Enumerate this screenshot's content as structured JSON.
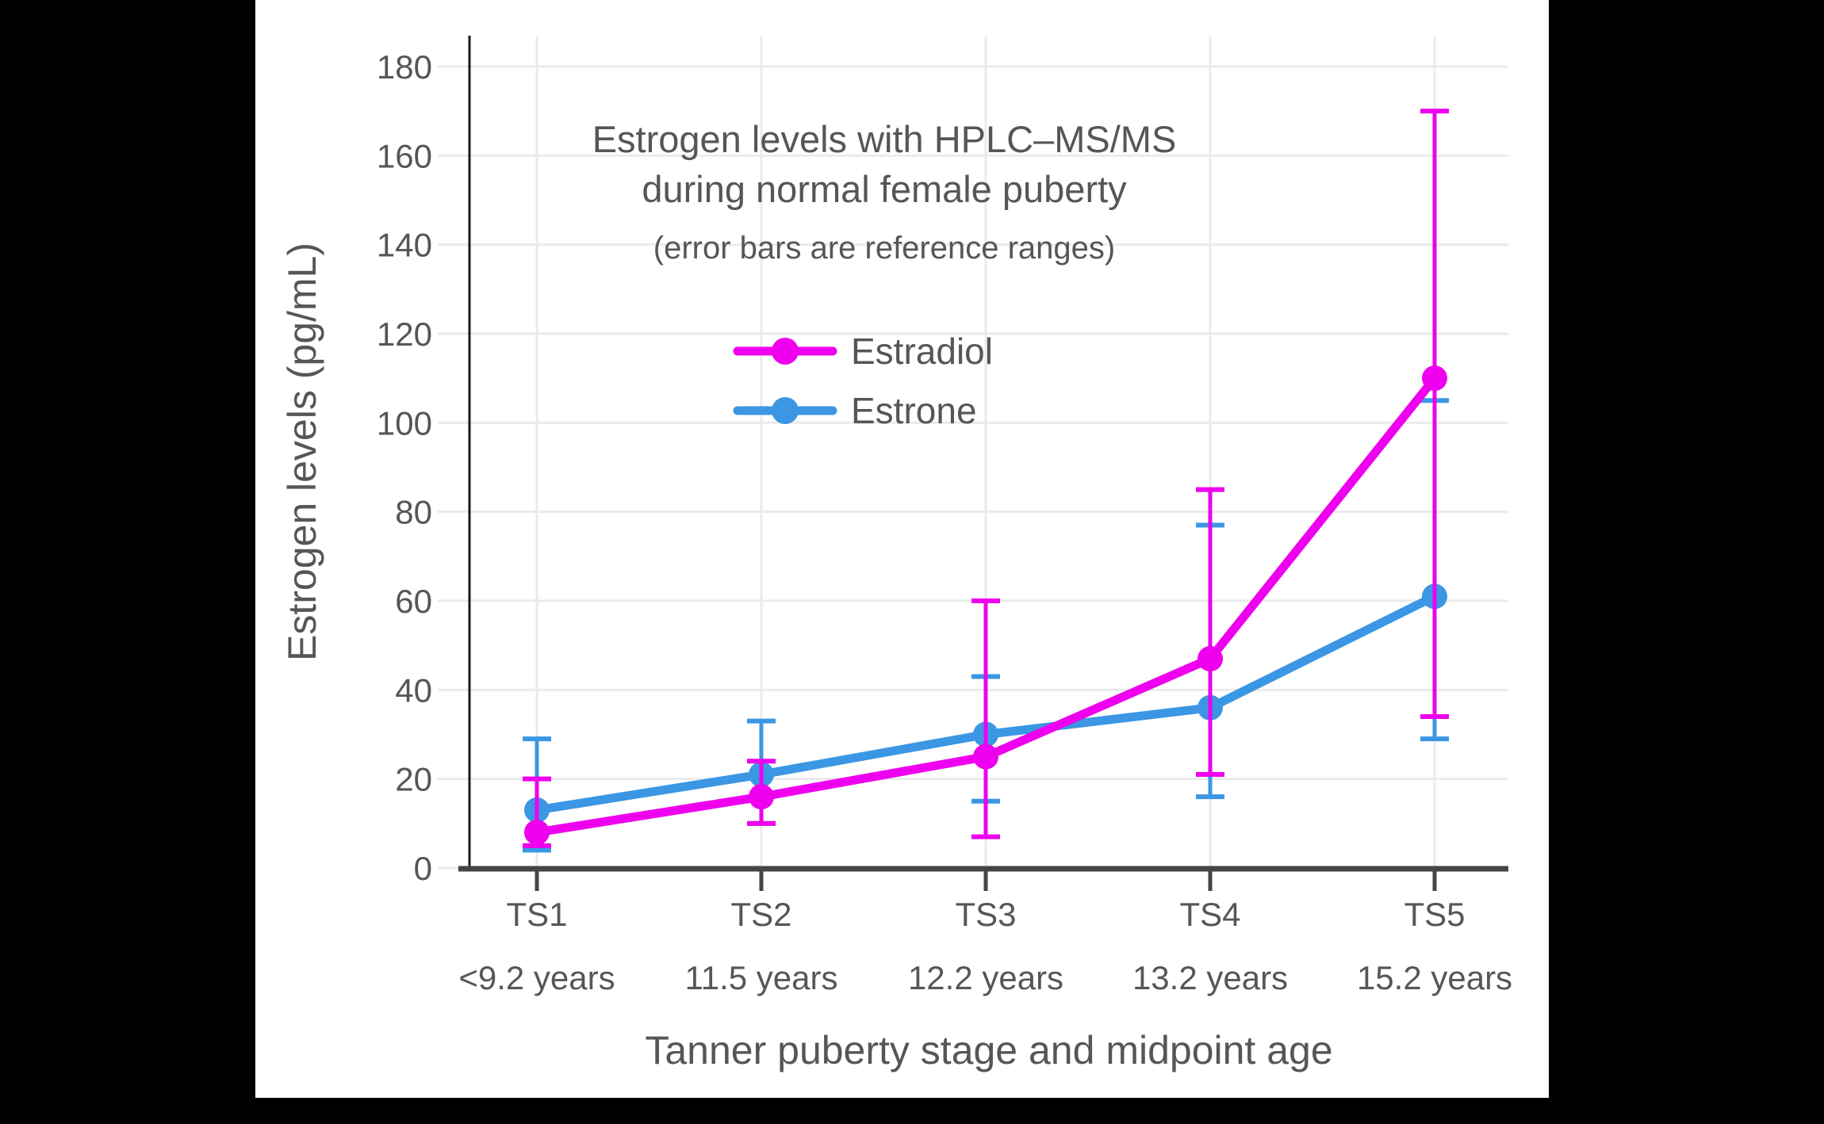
{
  "page": {
    "background_color": "#000000",
    "plot_background_color": "#ffffff"
  },
  "chart_data": {
    "type": "line",
    "title": "Estrogen levels with HPLC–MS/MS during normal female puberty",
    "title_lines": [
      "Estrogen levels with HPLC–MS/MS",
      "during normal female puberty"
    ],
    "subtitle": "(error bars are reference ranges)",
    "xlabel": "Tanner puberty stage and midpoint age",
    "ylabel": "Estrogen levels (pg/mL)",
    "categories": [
      "TS1",
      "TS2",
      "TS3",
      "TS4",
      "TS5"
    ],
    "category_sublabels": [
      "<9.2 years",
      "11.5 years",
      "12.2 years",
      "13.2 years",
      "15.2 years"
    ],
    "y_ticks": [
      0,
      20,
      40,
      60,
      80,
      100,
      120,
      140,
      160,
      180
    ],
    "ylim": [
      0,
      187
    ],
    "grid": true,
    "legend_position": "upper-left-inside",
    "error_bar_meaning": "reference ranges",
    "series": [
      {
        "name": "Estradiol",
        "color": "#EE00EE",
        "values": [
          8,
          16,
          25,
          47,
          110
        ],
        "error_low": [
          5,
          10,
          7,
          21,
          34
        ],
        "error_high": [
          20,
          24,
          60,
          85,
          170
        ]
      },
      {
        "name": "Estrone",
        "color": "#3B97E3",
        "values": [
          13,
          21,
          30,
          36,
          61
        ],
        "error_low": [
          4,
          10,
          15,
          16,
          29
        ],
        "error_high": [
          29,
          33,
          43,
          77,
          105
        ]
      }
    ],
    "colors": {
      "grid": "#EBEBEB",
      "x_axis": "#454545",
      "y_axis": "#1A1A1A",
      "text": "#565656"
    }
  }
}
